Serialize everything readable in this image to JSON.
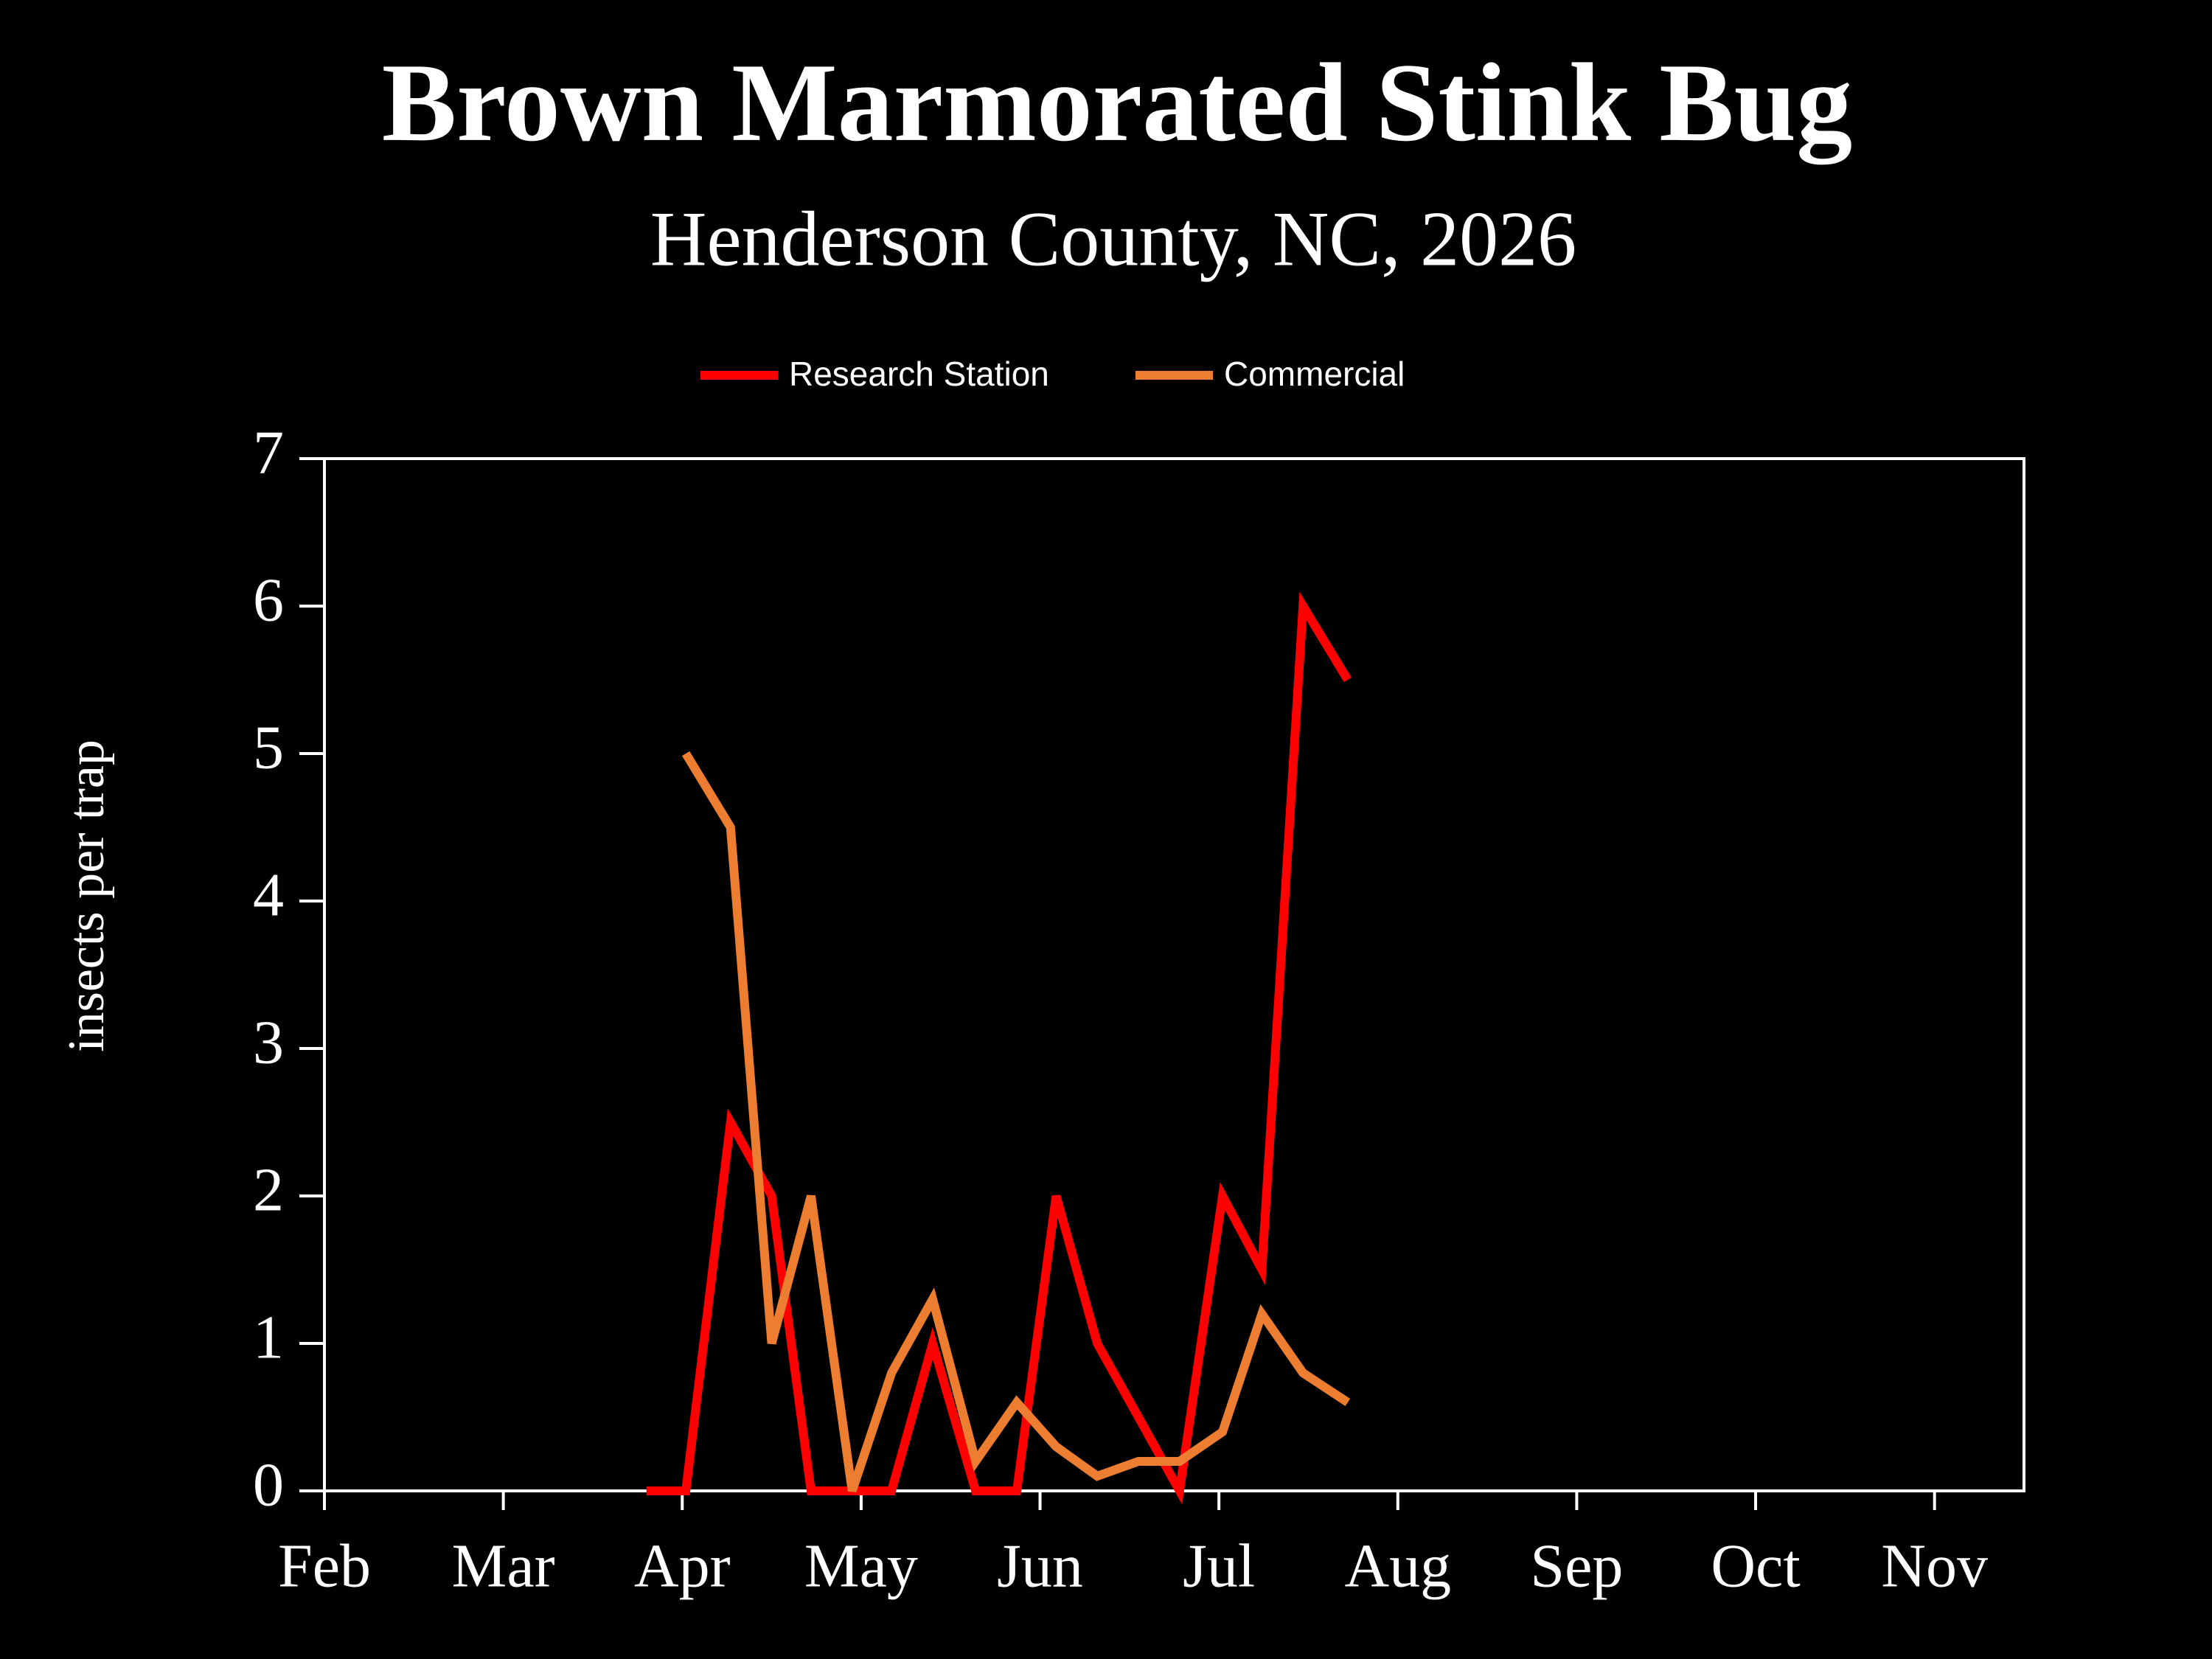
{
  "chart_data": {
    "type": "line",
    "title": "Brown Marmorated Stink Bug",
    "subtitle": "Henderson County, NC, 2026",
    "y_label": "insects per trap",
    "x": [
      3.8,
      4.02,
      4.27,
      4.5,
      4.72,
      4.95,
      5.17,
      5.4,
      5.64,
      5.87,
      6.09,
      6.32,
      6.55,
      6.78,
      7.02,
      7.24,
      7.47,
      7.72
    ],
    "series": [
      {
        "name": "Research Station",
        "color": "#ff0000",
        "values": [
          0,
          0,
          2.5,
          2,
          0,
          0,
          0,
          1,
          0,
          0,
          2,
          1,
          0.5,
          0,
          2,
          1.5,
          6,
          5.5
        ]
      },
      {
        "name": "Commercial",
        "color": "#ed7d31",
        "values": [
          null,
          5,
          4.5,
          1,
          2,
          0,
          0.8,
          1.3,
          0.2,
          0.6,
          0.3,
          0.1,
          0.2,
          0.2,
          0.4,
          1.2,
          0.8,
          0.6
        ]
      }
    ],
    "xlim": [
      2,
      11.5
    ],
    "xticks": [
      {
        "value": 2,
        "label": "Feb"
      },
      {
        "value": 3,
        "label": "Mar"
      },
      {
        "value": 4,
        "label": "Apr"
      },
      {
        "value": 5,
        "label": "May"
      },
      {
        "value": 6,
        "label": "Jun"
      },
      {
        "value": 7,
        "label": "Jul"
      },
      {
        "value": 8,
        "label": "Aug"
      },
      {
        "value": 9,
        "label": "Sep"
      },
      {
        "value": 10,
        "label": "Oct"
      },
      {
        "value": 11,
        "label": "Nov"
      }
    ],
    "ylim": [
      0,
      7
    ],
    "yticks": [
      0,
      1,
      2,
      3,
      4,
      5,
      6,
      7
    ],
    "grid": false,
    "legend": "top"
  }
}
